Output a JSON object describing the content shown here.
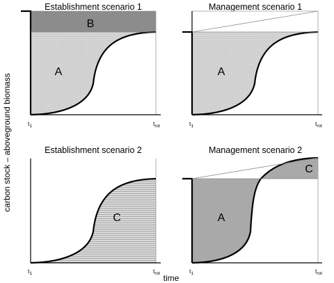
{
  "figure": {
    "y_axis_title": "carbon stock – aboveground biomass",
    "x_axis_title": "time",
    "colors": {
      "light_fill": "#d2d2d2",
      "dark_fill": "#8c8c8c",
      "medium_fill": "#a9a9a9",
      "hatch_fill": "#d6d6d6",
      "line": "#000000"
    },
    "panels": [
      {
        "id": "establishment-1",
        "title": "Establishment scenario 1",
        "regions": [
          "B",
          "A"
        ],
        "ticks": {
          "start": "t",
          "start_sub": "1",
          "end": "t",
          "end_sub": "rot"
        }
      },
      {
        "id": "management-1",
        "title": "Management scenario 1",
        "regions": [
          "A"
        ],
        "ticks": {
          "start": "t",
          "start_sub": "1",
          "end": "t",
          "end_sub": "rot"
        }
      },
      {
        "id": "establishment-2",
        "title": "Establishment scenario 2",
        "regions": [
          "C"
        ],
        "ticks": {
          "start": "t",
          "start_sub": "1",
          "end": "t",
          "end_sub": "rot"
        }
      },
      {
        "id": "management-2",
        "title": "Management scenario 2",
        "regions": [
          "C",
          "A"
        ],
        "ticks": {
          "start": "t",
          "start_sub": "1",
          "end": "t",
          "end_sub": "rot"
        }
      }
    ]
  }
}
